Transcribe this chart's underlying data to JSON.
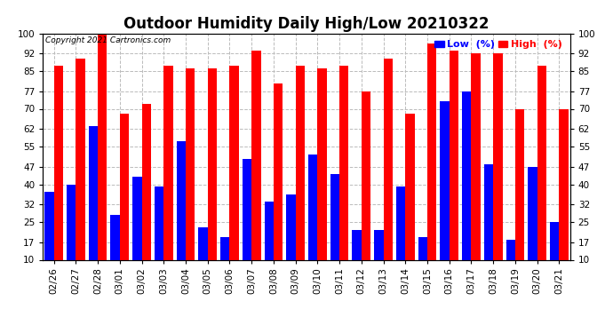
{
  "title": "Outdoor Humidity Daily High/Low 20210322",
  "copyright_text": "Copyright 2021 Cartronics.com",
  "categories": [
    "02/26",
    "02/27",
    "02/28",
    "03/01",
    "03/02",
    "03/03",
    "03/04",
    "03/05",
    "03/06",
    "03/07",
    "03/08",
    "03/09",
    "03/10",
    "03/11",
    "03/12",
    "03/13",
    "03/14",
    "03/15",
    "03/16",
    "03/17",
    "03/18",
    "03/19",
    "03/20",
    "03/21"
  ],
  "high_values": [
    87,
    90,
    100,
    68,
    72,
    87,
    86,
    86,
    87,
    93,
    80,
    87,
    86,
    87,
    77,
    90,
    68,
    96,
    93,
    92,
    92,
    70,
    87,
    70
  ],
  "low_values": [
    37,
    40,
    63,
    28,
    43,
    39,
    57,
    23,
    19,
    50,
    33,
    36,
    52,
    44,
    22,
    22,
    39,
    19,
    73,
    77,
    48,
    18,
    47,
    25
  ],
  "high_color": "#ff0000",
  "low_color": "#0000ff",
  "background_color": "#ffffff",
  "ylim": [
    10,
    100
  ],
  "yticks": [
    10,
    17,
    25,
    32,
    40,
    47,
    55,
    62,
    70,
    77,
    85,
    92,
    100
  ],
  "grid_color": "#bbbbbb",
  "bar_width": 0.42,
  "title_fontsize": 12,
  "tick_fontsize": 7.5,
  "legend_low_label": "Low  (%)",
  "legend_high_label": "High  (%)"
}
